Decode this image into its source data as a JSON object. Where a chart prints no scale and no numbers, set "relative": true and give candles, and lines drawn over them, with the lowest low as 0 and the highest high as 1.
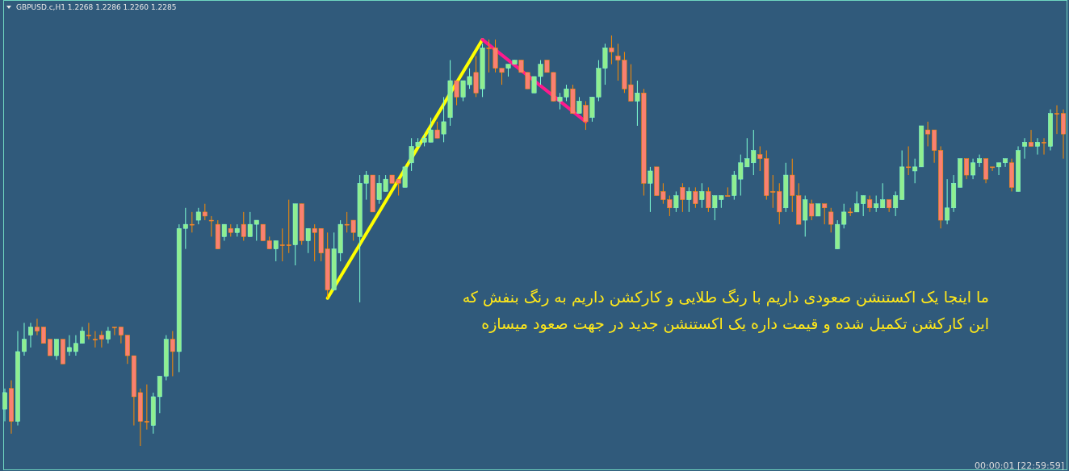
{
  "chart_data": {
    "type": "candlestick",
    "title": "GBPUSD.c,H1  1.2268 1.2286 1.2260 1.2285",
    "relative": true,
    "categories": [
      null,
      null,
      null,
      null,
      null,
      null,
      null,
      null,
      null,
      null,
      null,
      null,
      null,
      null,
      null,
      null,
      null,
      null,
      null,
      null,
      null,
      null,
      null,
      null,
      null,
      null,
      null,
      null,
      null,
      null,
      null,
      null,
      null,
      null,
      null,
      null,
      null,
      null,
      null,
      null,
      null,
      null,
      null,
      null,
      null,
      null,
      null,
      null,
      null,
      null,
      null,
      null,
      null,
      null,
      null,
      null,
      null,
      null,
      null,
      null,
      null,
      null,
      null,
      null,
      null,
      null,
      null,
      null,
      null,
      null,
      null,
      null,
      null,
      null,
      null,
      null,
      null,
      null,
      null,
      null,
      null,
      null,
      null,
      null,
      null,
      null,
      null,
      null,
      null,
      null,
      null,
      null,
      null,
      null,
      null,
      null,
      null,
      null,
      null,
      null,
      null,
      null,
      null,
      null,
      null,
      null,
      null,
      null,
      null,
      null,
      null,
      null,
      null,
      null,
      null,
      null,
      null,
      null,
      null,
      null,
      null,
      null,
      null,
      null,
      null,
      null,
      null,
      null,
      null,
      null,
      null,
      null,
      null,
      null,
      null,
      null,
      null,
      null,
      null,
      null,
      null,
      null,
      null,
      null,
      null,
      null,
      null,
      null,
      null,
      null,
      null,
      null,
      null,
      null,
      null,
      null,
      null,
      null,
      null,
      null,
      null,
      null,
      null,
      null,
      null
    ],
    "ohlc": [
      [
        0.09,
        0.14,
        0.06,
        0.13
      ],
      [
        0.14,
        0.16,
        0.03,
        0.06
      ],
      [
        0.06,
        0.28,
        0.05,
        0.23
      ],
      [
        0.23,
        0.3,
        0.22,
        0.26
      ],
      [
        0.27,
        0.3,
        0.24,
        0.29
      ],
      [
        0.29,
        0.31,
        0.27,
        0.28
      ],
      [
        0.29,
        0.29,
        0.25,
        0.25
      ],
      [
        0.26,
        0.26,
        0.22,
        0.22
      ],
      [
        0.22,
        0.26,
        0.21,
        0.26
      ],
      [
        0.26,
        0.26,
        0.2,
        0.2
      ],
      [
        0.23,
        0.27,
        0.22,
        0.24
      ],
      [
        0.23,
        0.27,
        0.22,
        0.25
      ],
      [
        0.25,
        0.29,
        0.25,
        0.28
      ],
      [
        0.27,
        0.3,
        0.26,
        0.27
      ],
      [
        0.26,
        0.28,
        0.24,
        0.26
      ],
      [
        0.27,
        0.28,
        0.24,
        0.26
      ],
      [
        0.26,
        0.29,
        0.25,
        0.28
      ],
      [
        0.29,
        0.29,
        0.27,
        0.29
      ],
      [
        0.29,
        0.29,
        0.25,
        0.27
      ],
      [
        0.27,
        0.27,
        0.2,
        0.22
      ],
      [
        0.22,
        0.22,
        0.05,
        0.12
      ],
      [
        0.13,
        0.14,
        0,
        0.06
      ],
      [
        0.06,
        0.15,
        0.04,
        0.06
      ],
      [
        0.05,
        0.13,
        0.03,
        0.12
      ],
      [
        0.12,
        0.17,
        0.08,
        0.17
      ],
      [
        0.17,
        0.27,
        0.16,
        0.26
      ],
      [
        0.26,
        0.28,
        0.17,
        0.23
      ],
      [
        0.23,
        0.54,
        0.18,
        0.53
      ],
      [
        0.53,
        0.58,
        0.48,
        0.54
      ],
      [
        0.54,
        0.57,
        0.52,
        0.54
      ],
      [
        0.55,
        0.58,
        0.54,
        0.57
      ],
      [
        0.57,
        0.59,
        0.55,
        0.56
      ],
      [
        0.55,
        0.56,
        0.51,
        0.55
      ],
      [
        0.54,
        0.55,
        0.48,
        0.48
      ],
      [
        0.51,
        0.54,
        0.5,
        0.54
      ],
      [
        0.53,
        0.54,
        0.51,
        0.52
      ],
      [
        0.52,
        0.54,
        0.51,
        0.53
      ],
      [
        0.54,
        0.57,
        0.5,
        0.51
      ],
      [
        0.51,
        0.57,
        0.51,
        0.54
      ],
      [
        0.54,
        0.55,
        0.5,
        0.55
      ],
      [
        0.54,
        0.54,
        0.5,
        0.5
      ],
      [
        0.5,
        0.51,
        0.48,
        0.48
      ],
      [
        0.48,
        0.5,
        0.45,
        0.5
      ],
      [
        0.49,
        0.53,
        0.45,
        0.49
      ],
      [
        0.49,
        0.6,
        0.47,
        0.49
      ],
      [
        0.49,
        0.59,
        0.44,
        0.59
      ],
      [
        0.59,
        0.59,
        0.49,
        0.5
      ],
      [
        0.5,
        0.53,
        0.47,
        0.53
      ],
      [
        0.53,
        0.54,
        0.45,
        0.52
      ],
      [
        0.53,
        0.53,
        0.45,
        0.47
      ],
      [
        0.48,
        0.52,
        0.36,
        0.38
      ],
      [
        0.38,
        0.52,
        0.38,
        0.48
      ],
      [
        0.47,
        0.55,
        0.45,
        0.54
      ],
      [
        0.54,
        0.57,
        0.52,
        0.54
      ],
      [
        0.55,
        0.55,
        0.5,
        0.52
      ],
      [
        0.51,
        0.66,
        0.35,
        0.64
      ],
      [
        0.64,
        0.67,
        0.6,
        0.66
      ],
      [
        0.66,
        0.66,
        0.57,
        0.57
      ],
      [
        0.6,
        0.66,
        0.59,
        0.64
      ],
      [
        0.62,
        0.66,
        0.62,
        0.65
      ],
      [
        0.66,
        0.66,
        0.64,
        0.64
      ],
      [
        0.65,
        0.65,
        0.61,
        0.64
      ],
      [
        0.63,
        0.68,
        0.63,
        0.68
      ],
      [
        0.69,
        0.75,
        0.67,
        0.73
      ],
      [
        0.73,
        0.75,
        0.73,
        0.74
      ],
      [
        0.74,
        0.76,
        0.73,
        0.75
      ],
      [
        0.74,
        0.8,
        0.74,
        0.77
      ],
      [
        0.77,
        0.79,
        0.75,
        0.75
      ],
      [
        0.76,
        0.85,
        0.74,
        0.79
      ],
      [
        0.8,
        0.94,
        0.78,
        0.89
      ],
      [
        0.89,
        0.89,
        0.83,
        0.85
      ],
      [
        0.85,
        0.89,
        0.84,
        0.89
      ],
      [
        0.88,
        0.92,
        0.87,
        0.9
      ],
      [
        0.91,
        0.95,
        0.85,
        0.86
      ],
      [
        0.87,
        0.98,
        0.85,
        0.97
      ],
      [
        0.97,
        0.99,
        0.91,
        0.97
      ],
      [
        0.97,
        0.99,
        0.91,
        0.92
      ],
      [
        0.92,
        0.92,
        0.88,
        0.91
      ],
      [
        0.92,
        0.93,
        0.9,
        0.93
      ],
      [
        0.93,
        0.94,
        0.93,
        0.94
      ],
      [
        0.94,
        0.94,
        0.91,
        0.91
      ],
      [
        0.91,
        0.91,
        0.87,
        0.87
      ],
      [
        0.86,
        0.9,
        0.86,
        0.9
      ],
      [
        0.9,
        0.94,
        0.88,
        0.93
      ],
      [
        0.94,
        0.94,
        0.91,
        0.91
      ],
      [
        0.91,
        0.91,
        0.84,
        0.84
      ],
      [
        0.84,
        0.86,
        0.82,
        0.85
      ],
      [
        0.85,
        0.88,
        0.84,
        0.87
      ],
      [
        0.87,
        0.88,
        0.81,
        0.81
      ],
      [
        0.81,
        0.85,
        0.81,
        0.84
      ],
      [
        0.83,
        0.84,
        0.77,
        0.79
      ],
      [
        0.8,
        0.85,
        0.79,
        0.85
      ],
      [
        0.85,
        0.94,
        0.84,
        0.92
      ],
      [
        0.92,
        0.98,
        0.88,
        0.97
      ],
      [
        0.97,
        1,
        0.93,
        0.96
      ],
      [
        0.95,
        0.98,
        0.89,
        0.94
      ],
      [
        0.94,
        0.96,
        0.86,
        0.87
      ],
      [
        0.88,
        0.93,
        0.84,
        0.84
      ],
      [
        0.84,
        0.89,
        0.78,
        0.86
      ],
      [
        0.86,
        0.87,
        0.61,
        0.64
      ],
      [
        0.64,
        0.68,
        0.57,
        0.67
      ],
      [
        0.68,
        0.68,
        0.61,
        0.61
      ],
      [
        0.62,
        0.64,
        0.59,
        0.6
      ],
      [
        0.6,
        0.61,
        0.56,
        0.58
      ],
      [
        0.58,
        0.62,
        0.57,
        0.61
      ],
      [
        0.63,
        0.64,
        0.57,
        0.6
      ],
      [
        0.6,
        0.63,
        0.57,
        0.62
      ],
      [
        0.62,
        0.63,
        0.58,
        0.59
      ],
      [
        0.6,
        0.64,
        0.58,
        0.62
      ],
      [
        0.62,
        0.63,
        0.57,
        0.58
      ],
      [
        0.58,
        0.61,
        0.55,
        0.61
      ],
      [
        0.6,
        0.61,
        0.58,
        0.61
      ],
      [
        0.61,
        0.63,
        0.61,
        0.61
      ],
      [
        0.61,
        0.67,
        0.6,
        0.66
      ],
      [
        0.65,
        0.71,
        0.61,
        0.69
      ],
      [
        0.68,
        0.75,
        0.68,
        0.7
      ],
      [
        0.69,
        0.77,
        0.66,
        0.72
      ],
      [
        0.71,
        0.73,
        0.67,
        0.7
      ],
      [
        0.7,
        0.72,
        0.6,
        0.61
      ],
      [
        0.62,
        0.66,
        0.58,
        0.62
      ],
      [
        0.62,
        0.64,
        0.54,
        0.57
      ],
      [
        0.58,
        0.69,
        0.57,
        0.66
      ],
      [
        0.66,
        0.7,
        0.57,
        0.61
      ],
      [
        0.61,
        0.64,
        0.54,
        0.54
      ],
      [
        0.55,
        0.61,
        0.51,
        0.6
      ],
      [
        0.59,
        0.6,
        0.55,
        0.56
      ],
      [
        0.56,
        0.59,
        0.56,
        0.59
      ],
      [
        0.59,
        0.59,
        0.54,
        0.58
      ],
      [
        0.57,
        0.58,
        0.52,
        0.54
      ],
      [
        0.48,
        0.55,
        0.48,
        0.54
      ],
      [
        0.54,
        0.59,
        0.53,
        0.57
      ],
      [
        0.57,
        0.58,
        0.56,
        0.57
      ],
      [
        0.57,
        0.62,
        0.57,
        0.59
      ],
      [
        0.59,
        0.61,
        0.56,
        0.61
      ],
      [
        0.6,
        0.61,
        0.57,
        0.58
      ],
      [
        0.58,
        0.61,
        0.57,
        0.59
      ],
      [
        0.58,
        0.64,
        0.58,
        0.6
      ],
      [
        0.6,
        0.6,
        0.57,
        0.58
      ],
      [
        0.58,
        0.62,
        0.56,
        0.61
      ],
      [
        0.6,
        0.72,
        0.6,
        0.68
      ],
      [
        0.68,
        0.73,
        0.66,
        0.68
      ],
      [
        0.67,
        0.7,
        0.64,
        0.68
      ],
      [
        0.68,
        0.78,
        0.68,
        0.78
      ],
      [
        0.77,
        0.79,
        0.73,
        0.76
      ],
      [
        0.77,
        0.77,
        0.69,
        0.72
      ],
      [
        0.72,
        0.73,
        0.53,
        0.55
      ],
      [
        0.55,
        0.65,
        0.54,
        0.58
      ],
      [
        0.58,
        0.66,
        0.57,
        0.64
      ],
      [
        0.63,
        0.7,
        0.63,
        0.7
      ],
      [
        0.7,
        0.7,
        0.65,
        0.66
      ],
      [
        0.66,
        0.7,
        0.65,
        0.69
      ],
      [
        0.69,
        0.71,
        0.68,
        0.7
      ],
      [
        0.7,
        0.7,
        0.64,
        0.65
      ],
      [
        0.68,
        0.68,
        0.67,
        0.68
      ],
      [
        0.68,
        0.69,
        0.66,
        0.69
      ],
      [
        0.69,
        0.7,
        0.68,
        0.7
      ],
      [
        0.69,
        0.7,
        0.62,
        0.63
      ],
      [
        0.62,
        0.73,
        0.62,
        0.72
      ],
      [
        0.73,
        0.75,
        0.7,
        0.74
      ],
      [
        0.74,
        0.77,
        0.73,
        0.73
      ],
      [
        0.73,
        0.75,
        0.71,
        0.74
      ],
      [
        0.74,
        0.75,
        0.71,
        0.74
      ],
      [
        0.73,
        0.82,
        0.72,
        0.81
      ],
      [
        0.81,
        0.83,
        0.76,
        0.81
      ],
      [
        0.81,
        0.82,
        0.7,
        0.76
      ]
    ],
    "series": [
      {
        "type": "line",
        "color": "#ffff00",
        "values": [
          null,
          null,
          null,
          null,
          null,
          null,
          null,
          null,
          null,
          null,
          null,
          null,
          null,
          null,
          null,
          null,
          null,
          null,
          null,
          null,
          null,
          null,
          null,
          null,
          null,
          null,
          null,
          null,
          null,
          null,
          null,
          null,
          null,
          null,
          null,
          null,
          null,
          null,
          null,
          null,
          null,
          null,
          null,
          null,
          null,
          null,
          null,
          null,
          null,
          null,
          0.36,
          null,
          null,
          null,
          null,
          null,
          null,
          null,
          null,
          null,
          null,
          null,
          null,
          null,
          null,
          null,
          null,
          null,
          null,
          null,
          null,
          null,
          null,
          null,
          0.99,
          null,
          null,
          null,
          null,
          null,
          null,
          null,
          null,
          null,
          null,
          null,
          null,
          null,
          null,
          null,
          null,
          null,
          null,
          null,
          null,
          null,
          null,
          null,
          null,
          null,
          null,
          null,
          null,
          null,
          null,
          null,
          null,
          null,
          null,
          null,
          null,
          null,
          null,
          null,
          null,
          null,
          null,
          null,
          null,
          null,
          null,
          null,
          null,
          null,
          null,
          null,
          null,
          null,
          null,
          null,
          null,
          null,
          null,
          null,
          null,
          null,
          null,
          null,
          null,
          null,
          null,
          null,
          null,
          null,
          null,
          null,
          null,
          null,
          null,
          null,
          null,
          null,
          null,
          null,
          null,
          null,
          null,
          null,
          null,
          null,
          null,
          null,
          null,
          null,
          null
        ]
      },
      {
        "type": "line",
        "color": "#ff1a8c",
        "values": [
          null,
          null,
          null,
          null,
          null,
          null,
          null,
          null,
          null,
          null,
          null,
          null,
          null,
          null,
          null,
          null,
          null,
          null,
          null,
          null,
          null,
          null,
          null,
          null,
          null,
          null,
          null,
          null,
          null,
          null,
          null,
          null,
          null,
          null,
          null,
          null,
          null,
          null,
          null,
          null,
          null,
          null,
          null,
          null,
          null,
          null,
          null,
          null,
          null,
          null,
          null,
          null,
          null,
          null,
          null,
          null,
          null,
          null,
          null,
          null,
          null,
          null,
          null,
          null,
          null,
          null,
          null,
          null,
          null,
          null,
          null,
          null,
          null,
          null,
          0.99,
          null,
          null,
          null,
          null,
          null,
          null,
          null,
          null,
          null,
          null,
          null,
          null,
          null,
          null,
          null,
          0.79,
          null,
          null,
          null,
          null,
          null,
          null,
          null,
          null,
          null,
          null,
          null,
          null,
          null,
          null,
          null,
          null,
          null,
          null,
          null,
          null,
          null,
          null,
          null,
          null,
          null,
          null,
          null,
          null,
          null,
          null,
          null,
          null,
          null,
          null,
          null,
          null,
          null,
          null,
          null,
          null,
          null,
          null,
          null,
          null,
          null,
          null,
          null,
          null,
          null,
          null,
          null,
          null,
          null,
          null,
          null,
          null,
          null,
          null,
          null,
          null,
          null,
          null,
          null,
          null,
          null,
          null,
          null,
          null,
          null,
          null,
          null,
          null,
          null,
          null
        ]
      }
    ],
    "annotations": [
      "ما اینجا یک اکستنشن صعودی داریم با رنگ طلایی و کارکشن داریم به رنگ بنفش که\nاین کارکشن تکمیل شده و قیمت داره یک اکستنشن جدید در جهت صعود میسازه",
      "00:00:01 [22:59:59]"
    ]
  }
}
